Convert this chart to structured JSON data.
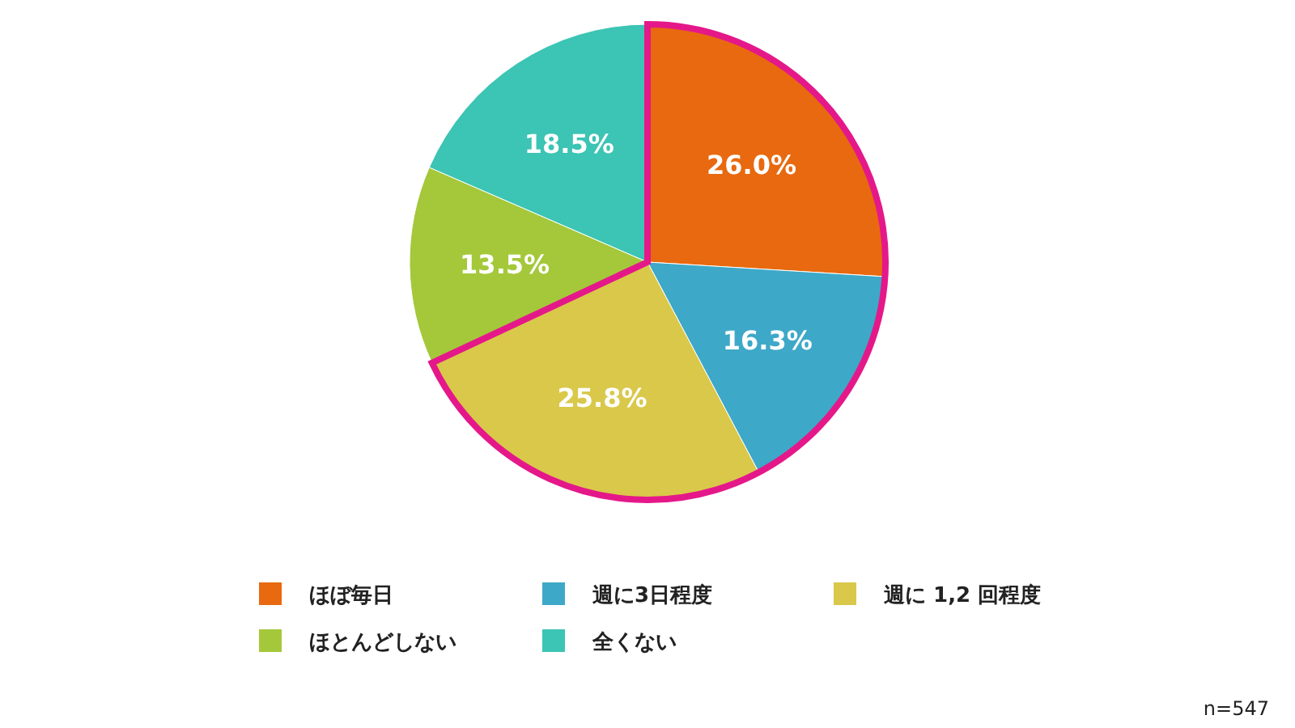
{
  "chart_data": {
    "type": "pie",
    "categories": [
      "ほぼ毎日",
      "週に3日程度",
      "週に 1,2 回程度",
      "ほとんどしない",
      "全くない"
    ],
    "values": [
      26.0,
      16.3,
      25.8,
      13.5,
      18.5
    ],
    "value_labels": [
      "26.0%",
      "16.3%",
      "25.8%",
      "13.5%",
      "18.5%"
    ],
    "colors": [
      "#e8690f",
      "#3ea8c8",
      "#d9c84a",
      "#a4c83a",
      "#3cc4b4"
    ],
    "legend": "bottom",
    "annotations": [
      "n=547"
    ]
  }
}
